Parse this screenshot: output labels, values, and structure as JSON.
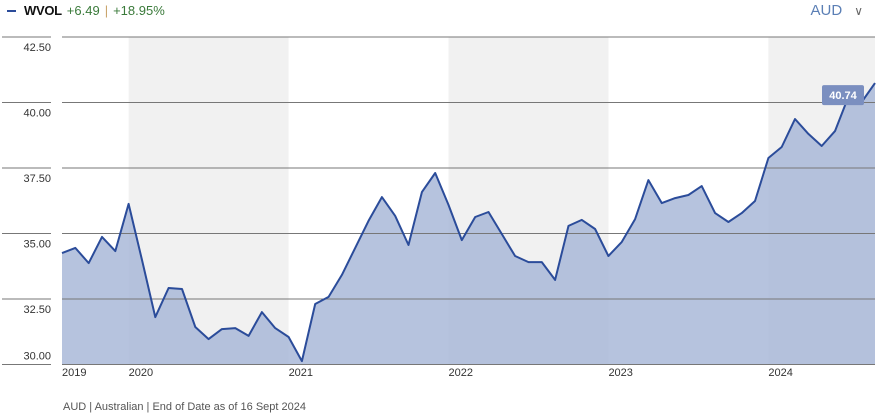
{
  "header": {
    "ticker": "WVOL",
    "change_abs": "+6.49",
    "separator": "|",
    "change_pct": "+18.95%",
    "currency_select": "AUD"
  },
  "footer": "AUD | Australian | End of Date as of 16 Sept 2024",
  "colors": {
    "line": "#2b4c9a",
    "fill": "#a9b8d8",
    "band": "#f1f1f1",
    "label_bg": "#7b8fc0",
    "change": "#3a7a3a"
  },
  "icons": {
    "currency_dropdown": "chevron-down-icon"
  },
  "chart_data": {
    "type": "area",
    "title": "",
    "xlabel": "",
    "ylabel": "",
    "ylim": [
      30,
      42.5
    ],
    "y_ticks": [
      "30.00",
      "32.50",
      "35.00",
      "37.50",
      "40.00",
      "42.50"
    ],
    "x_ticks": [
      "2019",
      "2020",
      "2021",
      "2022",
      "2023",
      "2024"
    ],
    "shaded_years": [
      "2020",
      "2022",
      "2024"
    ],
    "grid": true,
    "last_value_label": "40.74",
    "x": [
      "2019-08",
      "2019-09",
      "2019-10",
      "2019-11",
      "2019-12",
      "2020-01",
      "2020-02",
      "2020-03",
      "2020-04",
      "2020-05",
      "2020-06",
      "2020-07",
      "2020-08",
      "2020-09",
      "2020-10",
      "2020-11",
      "2020-12",
      "2021-01",
      "2021-02",
      "2021-03",
      "2021-04",
      "2021-05",
      "2021-06",
      "2021-07",
      "2021-08",
      "2021-09",
      "2021-10",
      "2021-11",
      "2021-12",
      "2022-01",
      "2022-02",
      "2022-03",
      "2022-04",
      "2022-05",
      "2022-06",
      "2022-07",
      "2022-08",
      "2022-09",
      "2022-10",
      "2022-11",
      "2022-12",
      "2023-01",
      "2023-02",
      "2023-03",
      "2023-04",
      "2023-05",
      "2023-06",
      "2023-07",
      "2023-08",
      "2023-09",
      "2023-10",
      "2023-11",
      "2023-12",
      "2024-01",
      "2024-02",
      "2024-03",
      "2024-04",
      "2024-05",
      "2024-06",
      "2024-07",
      "2024-08",
      "2024-09"
    ],
    "values": [
      34.25,
      34.45,
      33.87,
      34.87,
      34.33,
      36.13,
      33.99,
      31.81,
      32.92,
      32.88,
      31.43,
      30.97,
      31.35,
      31.39,
      31.09,
      32.0,
      31.39,
      31.05,
      30.13,
      32.31,
      32.58,
      33.42,
      34.45,
      35.48,
      36.39,
      35.67,
      34.56,
      36.58,
      37.31,
      36.09,
      34.75,
      35.63,
      35.82,
      34.98,
      34.14,
      33.91,
      33.91,
      33.23,
      35.29,
      35.52,
      35.17,
      34.14,
      34.68,
      35.55,
      37.04,
      36.16,
      36.35,
      36.47,
      36.81,
      35.78,
      35.44,
      35.78,
      36.24,
      37.88,
      38.3,
      39.37,
      38.8,
      38.34,
      38.91,
      40.21,
      40.02,
      40.74
    ]
  }
}
